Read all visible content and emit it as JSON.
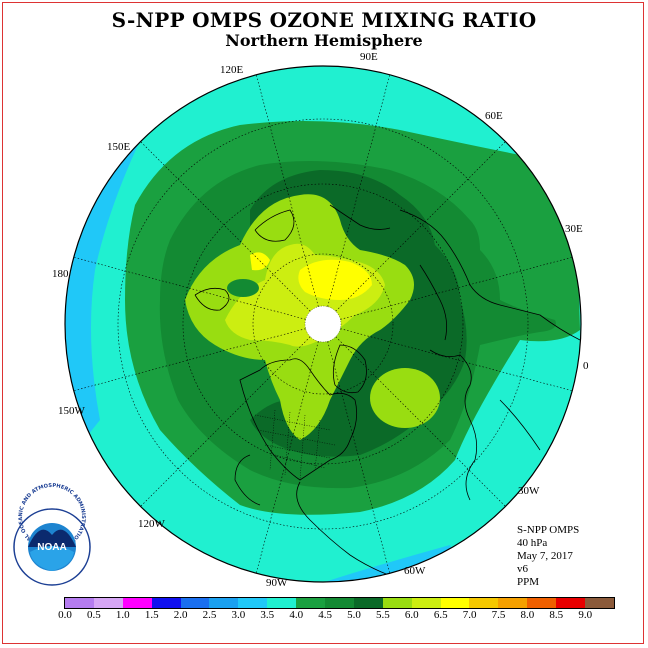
{
  "title": "S-NPP OMPS OZONE MIXING RATIO",
  "subtitle": "Northern Hemisphere",
  "longitude_labels": {
    "lon_90E": "90E",
    "lon_60E": "60E",
    "lon_30E": "30E",
    "lon_0": "0",
    "lon_30W": "30W",
    "lon_60W": "60W",
    "lon_90W": "90W",
    "lon_120W": "120W",
    "lon_150W": "150W",
    "lon_180": "180",
    "lon_150E": "150E",
    "lon_120E": "120E"
  },
  "info": {
    "instrument": "S-NPP OMPS",
    "level": "40 hPa",
    "date": "May 7, 2017",
    "version": "v6",
    "units": "PPM"
  },
  "logo": {
    "text": "NOAA",
    "ring_text": "NATIONAL OCEANIC AND ATMOSPHERIC ADMINISTRATION · U.S. DEPARTMENT OF COMMERCE"
  },
  "colorbar": {
    "colors": [
      "#b57cf0",
      "#d6a6f5",
      "#ff00ff",
      "#1010f0",
      "#1a6ff0",
      "#1aa0f0",
      "#20c8f8",
      "#20f0d0",
      "#1aa040",
      "#138a33",
      "#0b6a28",
      "#99dd11",
      "#ccee11",
      "#ffff00",
      "#f5c800",
      "#f5a000",
      "#f06000",
      "#e80000",
      "#8b5a3a"
    ],
    "ticks": [
      "0.0",
      "0.5",
      "1.0",
      "1.5",
      "2.0",
      "2.5",
      "3.0",
      "3.5",
      "4.0",
      "4.5",
      "5.0",
      "5.5",
      "6.0",
      "6.5",
      "7.0",
      "7.5",
      "8.0",
      "8.5",
      "9.0"
    ]
  }
}
